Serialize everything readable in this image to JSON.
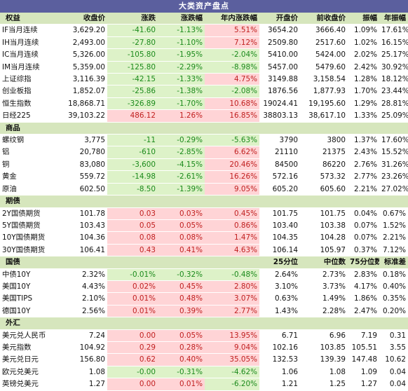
{
  "title": "大类资产盘点",
  "colors": {
    "header_bg": "#5b5f9e",
    "section_bg": "#d6e6bd",
    "green_bg": "#ddf2c8",
    "red_bg": "#ffd4d6",
    "down_text": "#1b8a1b",
    "up_text": "#c01f1f"
  },
  "sections": [
    {
      "header": [
        "权益",
        "收盘价",
        "涨跌",
        "涨跌幅",
        "年内涨跌幅",
        "开盘价",
        "前收盘价",
        "振幅",
        "年振幅"
      ],
      "rows": [
        [
          "IF当月连续",
          "3,629.20",
          "-41.60",
          "-1.13%",
          "5.51%",
          "3654.20",
          "3666.40",
          "1.09%",
          "17.61%"
        ],
        [
          "IH当月连续",
          "2,493.00",
          "-27.80",
          "-1.10%",
          "7.12%",
          "2509.80",
          "2517.60",
          "1.02%",
          "16.15%"
        ],
        [
          "IC当月连续",
          "5,326.00",
          "-105.80",
          "-1.95%",
          "-2.04%",
          "5410.00",
          "5424.00",
          "2.02%",
          "25.17%"
        ],
        [
          "IM当月连续",
          "5,359.00",
          "-125.80",
          "-2.29%",
          "-8.98%",
          "5457.00",
          "5479.60",
          "2.42%",
          "30.92%"
        ],
        [
          "上证综指",
          "3,116.39",
          "-42.15",
          "-1.33%",
          "4.75%",
          "3149.88",
          "3,158.54",
          "1.28%",
          "18.12%"
        ],
        [
          "创业板指",
          "1,852.07",
          "-25.86",
          "-1.38%",
          "-2.08%",
          "1876.56",
          "1,877.93",
          "1.70%",
          "23.44%"
        ],
        [
          "恒生指数",
          "18,868.71",
          "-326.89",
          "-1.70%",
          "10.68%",
          "19024.41",
          "19,195.60",
          "1.29%",
          "28.81%"
        ],
        [
          "日经225",
          "39,103.22",
          "486.12",
          "1.26%",
          "16.85%",
          "38803.13",
          "38,617.10",
          "1.33%",
          "25.09%"
        ]
      ]
    },
    {
      "header": [
        "商品",
        "",
        "",
        "",
        "",
        "",
        "",
        "",
        ""
      ],
      "rows": [
        [
          "螺纹钢",
          "3,775",
          "-11",
          "-0.29%",
          "-5.63%",
          "3790",
          "3800",
          "1.37%",
          "17.60%"
        ],
        [
          "铝",
          "20,780",
          "-610",
          "-2.85%",
          "6.62%",
          "21110",
          "21375",
          "2.43%",
          "15.52%"
        ],
        [
          "铜",
          "83,080",
          "-3,600",
          "-4.15%",
          "20.46%",
          "84500",
          "86220",
          "2.76%",
          "31.26%"
        ],
        [
          "黄金",
          "559.72",
          "-14.98",
          "-2.61%",
          "16.26%",
          "572.16",
          "573.32",
          "2.77%",
          "23.26%"
        ],
        [
          "原油",
          "602.50",
          "-8.50",
          "-1.39%",
          "9.05%",
          "605.20",
          "605.60",
          "2.21%",
          "27.02%"
        ]
      ]
    },
    {
      "header": [
        "期债",
        "",
        "",
        "",
        "",
        "",
        "",
        "",
        ""
      ],
      "rows": [
        [
          "2Y国债期货",
          "101.78",
          "0.03",
          "0.03%",
          "0.45%",
          "101.75",
          "101.75",
          "0.04%",
          "0.67%"
        ],
        [
          "5Y国债期货",
          "103.43",
          "0.05",
          "0.05%",
          "0.86%",
          "103.40",
          "103.38",
          "0.07%",
          "1.52%"
        ],
        [
          "10Y国债期货",
          "104.36",
          "0.08",
          "0.08%",
          "1.47%",
          "104.35",
          "104.28",
          "0.07%",
          "2.21%"
        ],
        [
          "30Y国债期货",
          "106.41",
          "0.43",
          "0.41%",
          "4.63%",
          "106.14",
          "105.97",
          "0.37%",
          "7.12%"
        ]
      ]
    },
    {
      "header": [
        "国债",
        "",
        "",
        "",
        "",
        "25分位",
        "中位数",
        "75分位数",
        "标准差"
      ],
      "rows": [
        [
          "中债10Y",
          "2.32%",
          "-0.01%",
          "-0.32%",
          "-0.48%",
          "2.64%",
          "2.73%",
          "2.83%",
          "0.18%"
        ],
        [
          "美国10Y",
          "4.43%",
          "0.02%",
          "0.45%",
          "2.80%",
          "3.10%",
          "3.73%",
          "4.17%",
          "0.40%"
        ],
        [
          "美国TIPS",
          "2.10%",
          "0.01%",
          "0.48%",
          "3.07%",
          "0.63%",
          "1.49%",
          "1.86%",
          "0.35%"
        ],
        [
          "德国10Y",
          "2.56%",
          "0.01%",
          "0.39%",
          "2.77%",
          "1.43%",
          "2.28%",
          "2.47%",
          "0.20%"
        ]
      ]
    },
    {
      "header": [
        "外汇",
        "",
        "",
        "",
        "",
        "",
        "",
        "",
        ""
      ],
      "rows": [
        [
          "美元兑人民币",
          "7.24",
          "0.00",
          "0.05%",
          "13.95%",
          "6.71",
          "6.96",
          "7.19",
          "0.31"
        ],
        [
          "美元指数",
          "104.92",
          "0.29",
          "0.28%",
          "9.04%",
          "102.16",
          "103.85",
          "105.51",
          "3.55"
        ],
        [
          "美元兑日元",
          "156.80",
          "0.62",
          "0.40%",
          "35.05%",
          "132.53",
          "139.39",
          "147.48",
          "10.62"
        ],
        [
          "欧元兑美元",
          "1.08",
          "-0.00",
          "-0.31%",
          "-4.62%",
          "1.06",
          "1.08",
          "1.09",
          "0.04"
        ],
        [
          "英镑兑美元",
          "1.27",
          "0.00",
          "0.01%",
          "-6.20%",
          "1.21",
          "1.25",
          "1.27",
          "0.04"
        ]
      ]
    }
  ]
}
